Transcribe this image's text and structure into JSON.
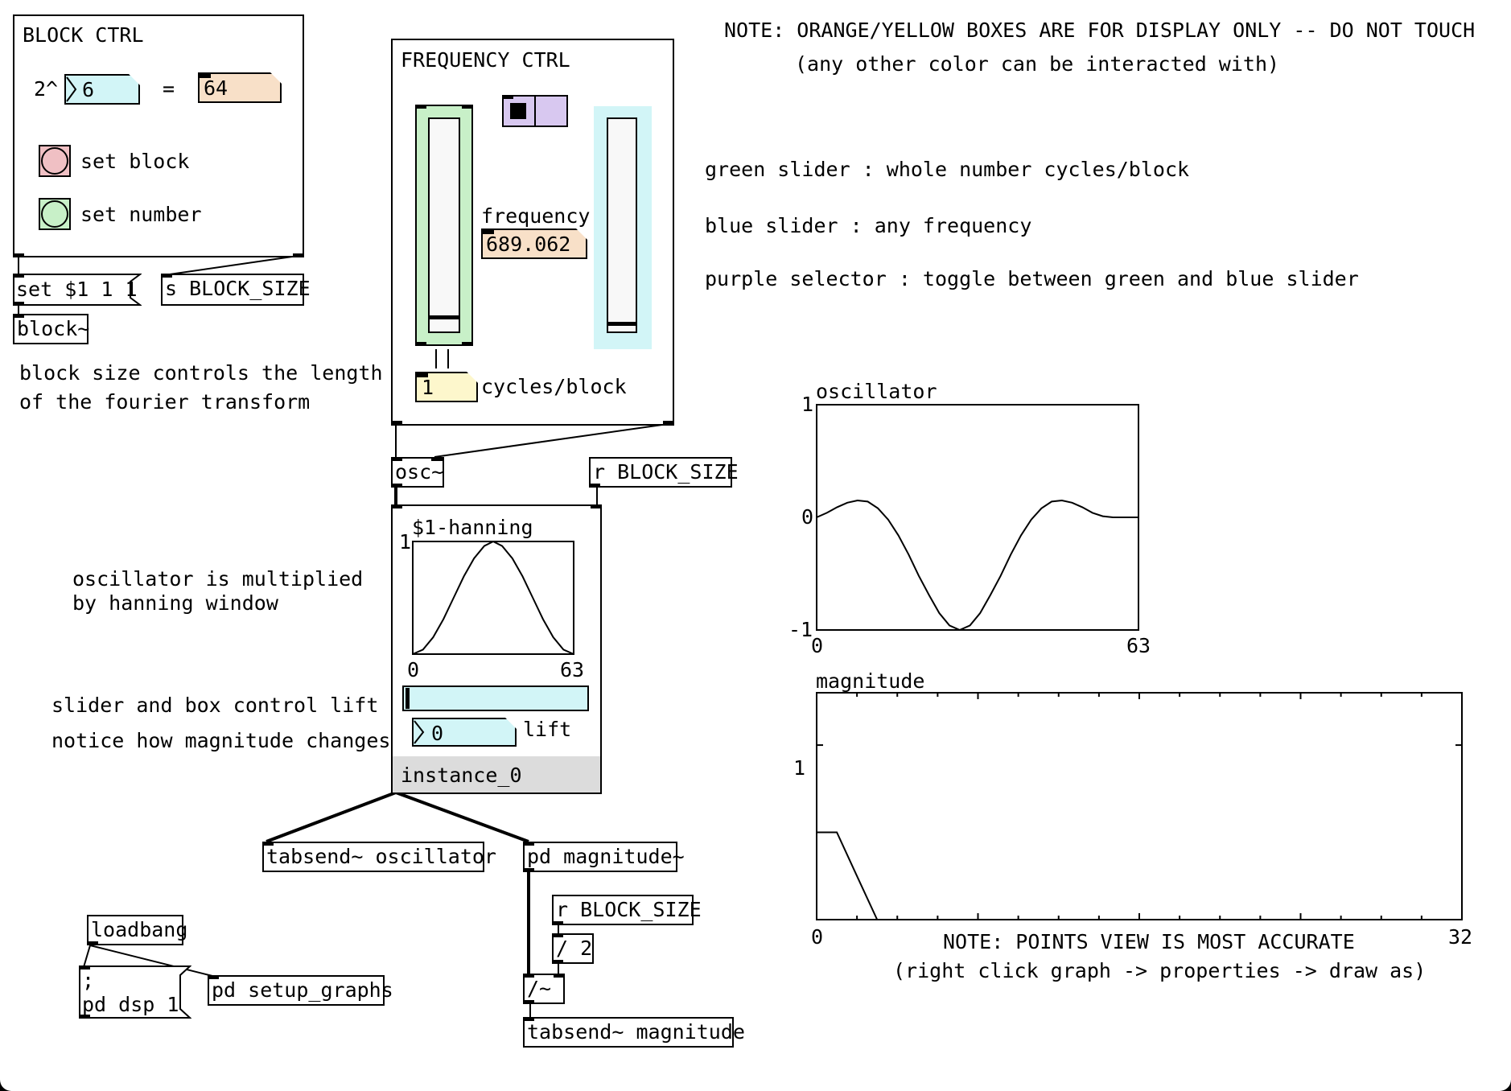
{
  "top_note": {
    "line1": "NOTE: ORANGE/YELLOW BOXES ARE FOR DISPLAY ONLY -- DO NOT TOUCH",
    "line2": "(any other color can be interacted with)"
  },
  "legend": {
    "green": "green slider : whole number cycles/block",
    "blue": "blue slider : any frequency",
    "purple": "purple selector : toggle between green and blue slider"
  },
  "block_ctrl": {
    "title": "BLOCK CTRL",
    "prefix": "2^",
    "exponent": "6",
    "equals": "=",
    "result": "64",
    "set_block": "set block",
    "set_number": "set number"
  },
  "objects": {
    "set_msg": "set $1 1 1",
    "send_block": "s BLOCK_SIZE",
    "block": "block~",
    "osc": "osc~",
    "recv_block": "r BLOCK_SIZE",
    "tabsend_osc": "tabsend~ oscillator",
    "pd_mag": "pd magnitude~",
    "recv_block2": "r BLOCK_SIZE",
    "div2": "/ 2",
    "sigdiv": "/~",
    "tabsend_mag": "tabsend~ magnitude",
    "loadbang": "loadbang",
    "dsp_line1": ";",
    "dsp_line2": "pd dsp 1",
    "setup_graphs": "pd setup_graphs"
  },
  "block_note": {
    "line1": "block size controls the length",
    "line2": "of the fourier transform"
  },
  "freq_ctrl": {
    "title": "FREQUENCY CTRL",
    "frequency_label": "frequency",
    "frequency_value": "689.062",
    "cycles_value": "1",
    "cycles_label": "cycles/block",
    "green_slider_level": 0.05,
    "blue_slider_level": 0.02
  },
  "hanning": {
    "title": "$1-hanning",
    "y_top": "1",
    "x_min": "0",
    "x_max": "63",
    "lift_value": "0",
    "lift_label": "lift",
    "instance": "instance_0"
  },
  "osc_note": {
    "line1": "oscillator is multiplied",
    "line2": "by hanning window"
  },
  "lift_note": {
    "line1": "slider and box control lift",
    "line2": "notice how magnitude changes"
  },
  "oscillator_graph": {
    "title": "oscillator",
    "y_max": "1",
    "y_mid": "0",
    "y_min": "-1",
    "x_min": "0",
    "x_max": "63"
  },
  "magnitude_graph": {
    "title": "magnitude",
    "y_label": "1",
    "x_min": "0",
    "x_max": "32",
    "note1": "NOTE: POINTS VIEW IS MOST ACCURATE",
    "note2": "(right click graph -> properties -> draw as)"
  },
  "colors": {
    "cyan": "#d2f5f7",
    "orange": "#f8e0c8",
    "green": "#c8f0c8",
    "purple": "#d8c8f0",
    "pink": "#f0c0c4",
    "yellow": "#fdf7cc",
    "gray": "#dcdcdc"
  },
  "chart_data": [
    {
      "type": "line",
      "title": "oscillator",
      "xlim": [
        0,
        63
      ],
      "ylim": [
        -1,
        1
      ],
      "x": [
        0,
        2,
        4,
        6,
        8,
        10,
        12,
        14,
        16,
        18,
        20,
        22,
        24,
        26,
        28,
        30,
        32,
        34,
        36,
        38,
        40,
        42,
        44,
        46,
        48,
        50,
        52,
        54,
        56,
        58,
        60,
        62,
        63
      ],
      "y": [
        0,
        0.04,
        0.09,
        0.13,
        0.15,
        0.14,
        0.08,
        -0.02,
        -0.16,
        -0.33,
        -0.52,
        -0.69,
        -0.85,
        -0.96,
        -1.0,
        -0.96,
        -0.85,
        -0.69,
        -0.52,
        -0.33,
        -0.16,
        -0.02,
        0.08,
        0.14,
        0.15,
        0.13,
        0.09,
        0.04,
        0.01,
        0,
        0,
        0,
        0
      ]
    },
    {
      "type": "line",
      "title": "magnitude",
      "xlim": [
        0,
        32
      ],
      "ylim": [
        0,
        1.3
      ],
      "x": [
        0,
        1,
        2,
        3,
        4,
        5,
        6,
        7,
        8,
        9,
        10,
        12,
        14,
        16,
        18,
        20,
        22,
        24,
        26,
        28,
        30,
        32
      ],
      "y": [
        0.5,
        0.5,
        0.25,
        0,
        0,
        0,
        0,
        0,
        0,
        0,
        0,
        0,
        0,
        0,
        0,
        0,
        0,
        0,
        0,
        0,
        0,
        0
      ]
    },
    {
      "type": "line",
      "title": "$1-hanning",
      "xlim": [
        0,
        63
      ],
      "ylim": [
        0,
        1
      ],
      "x": [
        0,
        4,
        8,
        12,
        16,
        20,
        24,
        28,
        31.5,
        35,
        39,
        43,
        47,
        51,
        55,
        59,
        63
      ],
      "y": [
        0,
        0.04,
        0.15,
        0.31,
        0.5,
        0.69,
        0.85,
        0.96,
        1,
        0.96,
        0.85,
        0.69,
        0.5,
        0.31,
        0.15,
        0.04,
        0
      ]
    }
  ]
}
